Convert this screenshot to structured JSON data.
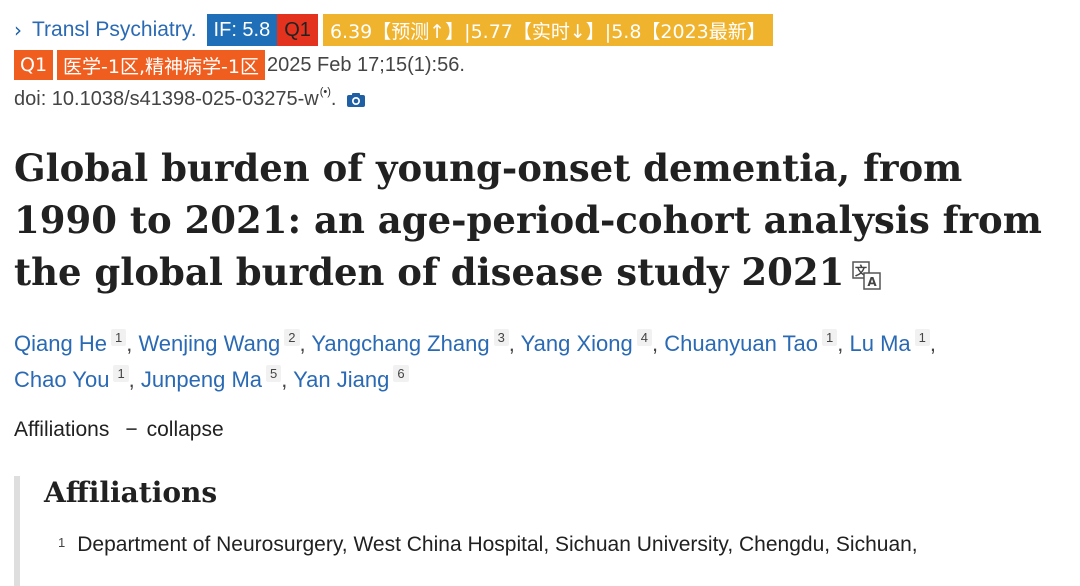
{
  "header": {
    "chevron": "›",
    "journal": "Transl Psychiatry.",
    "if_badge": "IF: 5.8",
    "q1_badge": "Q1",
    "prediction_badge": "6.39【预测↑】|5.77【实时↓】|5.8【2023最新】",
    "q1_badge_2": "Q1",
    "category_badge": "医学-1区,精神病学-1区",
    "date": "2025 Feb 17;15(1):56.",
    "doi": "doi: 10.1038/s41398-025-03275-w",
    "doi_suffix": "(•)",
    "doi_end": "."
  },
  "title": "Global burden of young-onset dementia, from 1990 to 2021: an age-period-cohort analysis from the global burden of disease study 2021",
  "authors": [
    {
      "name": "Qiang He",
      "aff": "1"
    },
    {
      "name": "Wenjing Wang",
      "aff": "2"
    },
    {
      "name": "Yangchang Zhang",
      "aff": "3"
    },
    {
      "name": "Yang Xiong",
      "aff": "4"
    },
    {
      "name": "Chuanyuan Tao",
      "aff": "1"
    },
    {
      "name": "Lu Ma",
      "aff": "1"
    },
    {
      "name": "Chao You",
      "aff": "1"
    },
    {
      "name": "Junpeng Ma",
      "aff": "5"
    },
    {
      "name": "Yan Jiang",
      "aff": "6"
    }
  ],
  "separator": ",",
  "affiliations_toggle": {
    "label": "Affiliations",
    "dash": "−",
    "action": "collapse"
  },
  "affiliations": {
    "heading": "Affiliations",
    "items": [
      {
        "num": "1",
        "text": "Department of Neurosurgery, West China Hospital, Sichuan University, Chengdu, Sichuan,"
      }
    ]
  },
  "colors": {
    "link": "#2a6ab4",
    "if_badge": "#1f6fb8",
    "q1_badge": "#e3331f",
    "prediction_badge": "#f0b32d",
    "category_badge": "#ef5d1f"
  }
}
